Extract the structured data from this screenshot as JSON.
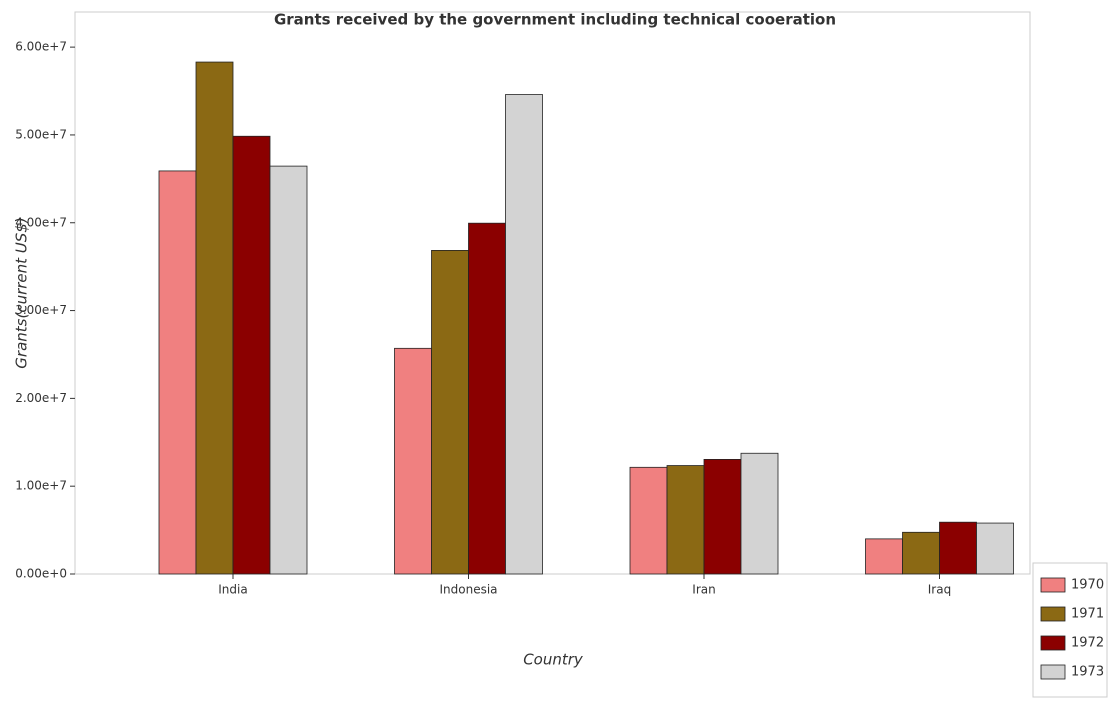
{
  "chart_data": {
    "type": "bar",
    "title": "Grants received by the government including technical cooeration",
    "x_label": "Country",
    "y_label": "Grants(current US$)",
    "categories": [
      "India",
      "Indonesia",
      "Iran",
      "Iraq"
    ],
    "series": [
      {
        "name": "1970",
        "color": "#f08080",
        "values": [
          45900000,
          25700000,
          12150000,
          4000000
        ]
      },
      {
        "name": "1971",
        "color": "#8b6914",
        "values": [
          58300000,
          36850000,
          12350000,
          4750000
        ]
      },
      {
        "name": "1972",
        "color": "#8b0000",
        "values": [
          49850000,
          39950000,
          13050000,
          5900000
        ]
      },
      {
        "name": "1973",
        "color": "#d3d3d3",
        "values": [
          46450000,
          54600000,
          13750000,
          5800000
        ]
      }
    ],
    "ylim": [
      0,
      64000000
    ],
    "yticks": [
      {
        "value": 0,
        "label": "0.00e+0"
      },
      {
        "value": 10000000,
        "label": "1.00e+7"
      },
      {
        "value": 20000000,
        "label": "2.00e+7"
      },
      {
        "value": 30000000,
        "label": "3.00e+7"
      },
      {
        "value": 40000000,
        "label": "4.00e+7"
      },
      {
        "value": 50000000,
        "label": "5.00e+7"
      },
      {
        "value": 60000000,
        "label": "6.00e+7"
      }
    ],
    "legend": "lower right"
  }
}
